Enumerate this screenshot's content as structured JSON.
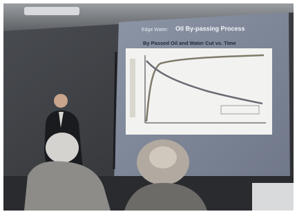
{
  "slide": {
    "title_prefix": "Edge Water:",
    "title": "Oil By-passing Process",
    "subtitle": "By Passed Oil and Water Cut vs. Time"
  }
}
